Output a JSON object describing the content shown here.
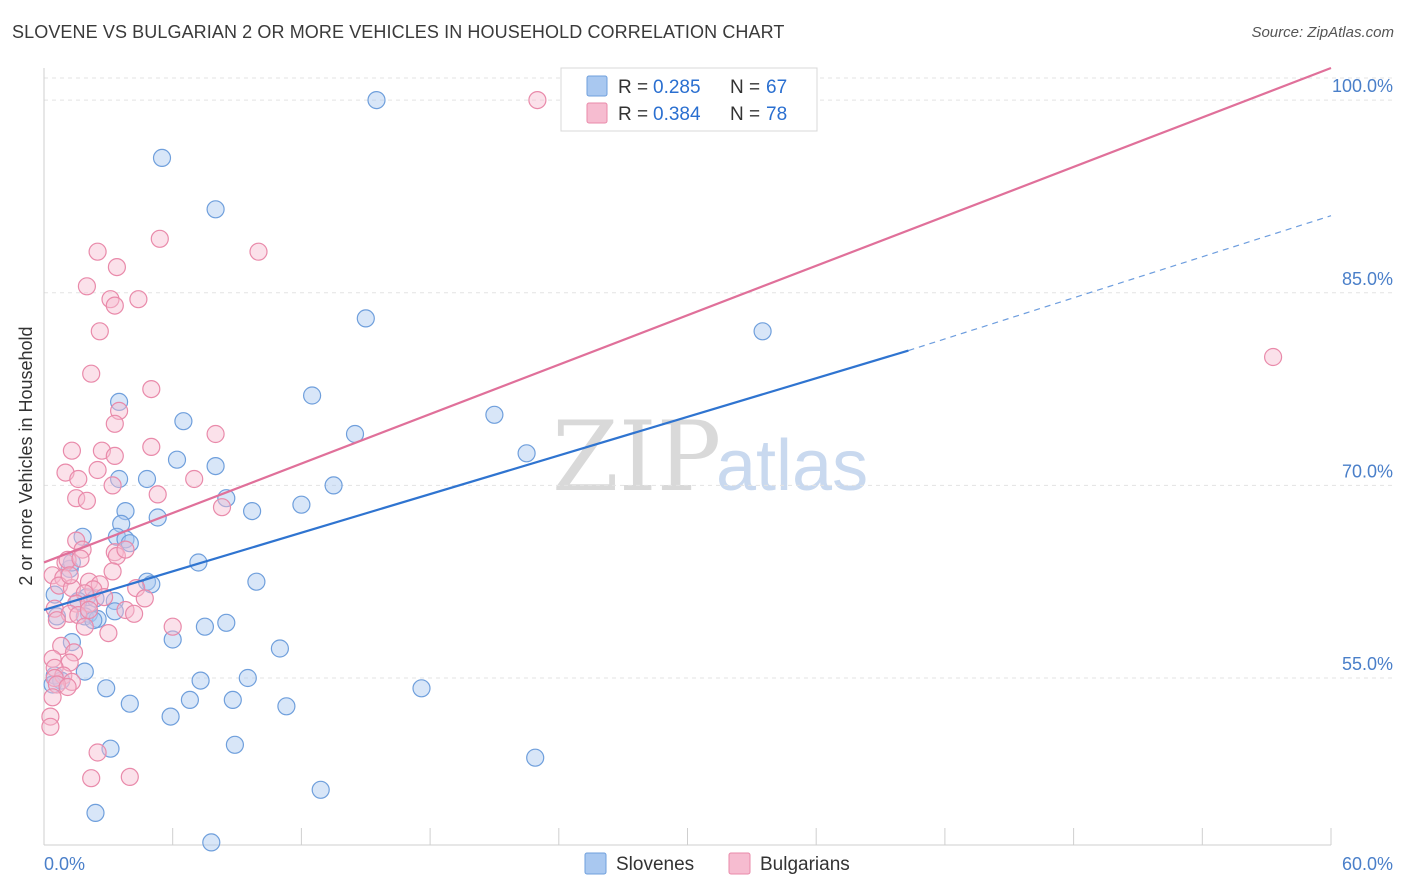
{
  "title": "SLOVENE VS BULGARIAN 2 OR MORE VEHICLES IN HOUSEHOLD CORRELATION CHART",
  "source": "Source: ZipAtlas.com",
  "watermark": {
    "zip": "ZIP",
    "atlas": "atlas"
  },
  "legend": {
    "r_label": "R =",
    "n_label": "N =",
    "rows": [
      {
        "r": "0.285",
        "n": "67"
      },
      {
        "r": "0.384",
        "n": "78"
      }
    ]
  },
  "colors": {
    "slovenes_fill": "#a9c8f0",
    "slovenes_stroke": "#6f9fdc",
    "slovenes_line": "#2f74d0",
    "bulgarians_fill": "#f6bcd0",
    "bulgarians_stroke": "#e98aaa",
    "bulgarians_line": "#e0709a"
  },
  "chart_data": {
    "type": "scatter",
    "title": "SLOVENE VS BULGARIAN 2 OR MORE VEHICLES IN HOUSEHOLD CORRELATION CHART",
    "xlabel": "",
    "ylabel": "2 or more Vehicles in Household",
    "xlim": [
      0,
      60
    ],
    "ylim": [
      42,
      102.5
    ],
    "x_tick_labels": [
      "0.0%",
      "60.0%"
    ],
    "y_ticks": [
      55,
      70,
      85,
      100
    ],
    "y_tick_labels": [
      "55.0%",
      "70.0%",
      "85.0%",
      "100.0%"
    ],
    "series": [
      {
        "name": "Slovenes",
        "r": 0.285,
        "n": 67,
        "trend": {
          "x0": 0,
          "y0": 60.3,
          "x1": 40.3,
          "y1": 80.5,
          "dash_to_x": 60,
          "dash_to_y": 91.0
        },
        "points": [
          [
            15.5,
            100
          ],
          [
            5.5,
            95.5
          ],
          [
            8,
            91.5
          ],
          [
            15,
            83
          ],
          [
            33.5,
            82
          ],
          [
            3.5,
            76.5
          ],
          [
            12.5,
            77
          ],
          [
            6.5,
            75
          ],
          [
            21,
            75.5
          ],
          [
            14.5,
            74
          ],
          [
            6.2,
            72
          ],
          [
            3.5,
            70.5
          ],
          [
            8,
            71.5
          ],
          [
            22.5,
            72.5
          ],
          [
            4.8,
            70.5
          ],
          [
            8.5,
            69
          ],
          [
            12,
            68.5
          ],
          [
            13.5,
            70
          ],
          [
            3.8,
            68
          ],
          [
            5.3,
            67.5
          ],
          [
            3.6,
            67
          ],
          [
            9.7,
            68
          ],
          [
            1.8,
            66
          ],
          [
            3.4,
            66
          ],
          [
            3.8,
            65.8
          ],
          [
            7.2,
            64
          ],
          [
            1.2,
            63.5
          ],
          [
            4.8,
            62.5
          ],
          [
            5,
            62.3
          ],
          [
            9.9,
            62.5
          ],
          [
            0.5,
            61.5
          ],
          [
            2,
            61.3
          ],
          [
            3.3,
            61
          ],
          [
            1.6,
            61
          ],
          [
            2.4,
            61.2
          ],
          [
            0.6,
            59.8
          ],
          [
            2.1,
            60
          ],
          [
            3.3,
            60.2
          ],
          [
            1.9,
            59.8
          ],
          [
            2.5,
            59.6
          ],
          [
            7.5,
            59
          ],
          [
            8.5,
            59.3
          ],
          [
            6,
            58
          ],
          [
            1.3,
            57.8
          ],
          [
            11,
            57.3
          ],
          [
            1.9,
            55.5
          ],
          [
            0.5,
            55.2
          ],
          [
            0.8,
            54.8
          ],
          [
            7.3,
            54.8
          ],
          [
            9.5,
            55
          ],
          [
            2.9,
            54.2
          ],
          [
            17.6,
            54.2
          ],
          [
            4,
            53
          ],
          [
            6.8,
            53.3
          ],
          [
            8.8,
            53.3
          ],
          [
            11.3,
            52.8
          ],
          [
            5.9,
            52
          ],
          [
            0.4,
            54.5
          ],
          [
            8.9,
            49.8
          ],
          [
            3.1,
            49.5
          ],
          [
            22.9,
            48.8
          ],
          [
            12.9,
            46.3
          ],
          [
            2.4,
            44.5
          ],
          [
            7.8,
            42.2
          ],
          [
            2.3,
            59.5
          ],
          [
            4,
            65.5
          ],
          [
            1.3,
            64
          ]
        ]
      },
      {
        "name": "Bulgarians",
        "r": 0.384,
        "n": 78,
        "trend": {
          "x0": 0,
          "y0": 64,
          "x1": 60,
          "y1": 102.5
        },
        "points": [
          [
            23,
            100
          ],
          [
            5.4,
            89.2
          ],
          [
            2.5,
            88.2
          ],
          [
            10,
            88.2
          ],
          [
            3.4,
            87
          ],
          [
            2,
            85.5
          ],
          [
            3.1,
            84.5
          ],
          [
            4.4,
            84.5
          ],
          [
            3.3,
            84
          ],
          [
            2.6,
            82
          ],
          [
            57.3,
            80
          ],
          [
            2.2,
            78.7
          ],
          [
            5,
            77.5
          ],
          [
            3.5,
            75.8
          ],
          [
            3.3,
            74.8
          ],
          [
            8,
            74
          ],
          [
            5,
            73
          ],
          [
            1.3,
            72.7
          ],
          [
            2.7,
            72.7
          ],
          [
            3.3,
            72.3
          ],
          [
            1,
            71
          ],
          [
            2.5,
            71.2
          ],
          [
            1.6,
            70.5
          ],
          [
            7,
            70.5
          ],
          [
            3.2,
            70
          ],
          [
            5.3,
            69.3
          ],
          [
            1.5,
            69
          ],
          [
            2,
            68.8
          ],
          [
            8.3,
            68.3
          ],
          [
            1.5,
            65.7
          ],
          [
            1.8,
            65
          ],
          [
            3.3,
            64.8
          ],
          [
            3.4,
            64.5
          ],
          [
            1,
            64
          ],
          [
            1.1,
            64.2
          ],
          [
            1.7,
            64.3
          ],
          [
            3.2,
            63.3
          ],
          [
            0.4,
            63
          ],
          [
            0.9,
            62.8
          ],
          [
            2.1,
            62.5
          ],
          [
            0.7,
            62.2
          ],
          [
            1.3,
            62
          ],
          [
            2.6,
            62.3
          ],
          [
            2.3,
            61.9
          ],
          [
            4.3,
            62
          ],
          [
            1.9,
            61.6
          ],
          [
            2.8,
            61.3
          ],
          [
            4.7,
            61.2
          ],
          [
            1.5,
            60.8
          ],
          [
            2.1,
            60.8
          ],
          [
            3.8,
            60.3
          ],
          [
            0.5,
            60.4
          ],
          [
            1.2,
            60
          ],
          [
            1.6,
            59.9
          ],
          [
            6,
            59
          ],
          [
            0.6,
            59.5
          ],
          [
            1.9,
            59
          ],
          [
            3,
            58.5
          ],
          [
            0.8,
            57.5
          ],
          [
            1.4,
            57
          ],
          [
            1.2,
            56.2
          ],
          [
            0.4,
            56.5
          ],
          [
            0.5,
            55.8
          ],
          [
            0.9,
            55.2
          ],
          [
            0.5,
            55
          ],
          [
            1.3,
            54.7
          ],
          [
            0.6,
            54.5
          ],
          [
            1.1,
            54.3
          ],
          [
            0.4,
            53.5
          ],
          [
            0.3,
            52
          ],
          [
            0.3,
            51.2
          ],
          [
            2.5,
            49.2
          ],
          [
            2.2,
            47.2
          ],
          [
            4,
            47.3
          ],
          [
            2.1,
            60.3
          ],
          [
            3.8,
            65
          ],
          [
            1.2,
            63
          ],
          [
            4.2,
            60
          ]
        ]
      }
    ]
  },
  "bottom_legend": [
    "Slovenes",
    "Bulgarians"
  ]
}
